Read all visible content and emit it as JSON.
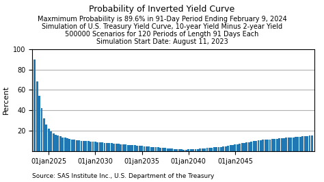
{
  "chart_data": {
    "type": "bar",
    "title": "Probability of Inverted Yield Curve",
    "subtitle": [
      "Maxmimum Probability is 89.6% in 91-Day Period Ending February 9, 2024",
      "Simulation of U.S. Treasury Yield Curve, 10-year Yield Minus 2-year Yield",
      "500000 Scenarios for 120 Periods of Length 91 Days Each",
      "Simulation Start Date: August 11, 2023"
    ],
    "y_label": "Percent",
    "annotations": [
      "Source: SAS Institute Inc., U.S. Department of the Treasury"
    ],
    "categories": [
      null,
      null,
      null,
      null,
      null,
      null,
      "01jan2025",
      null,
      null,
      null,
      null,
      null,
      null,
      null,
      null,
      null,
      null,
      null,
      null,
      null,
      null,
      null,
      null,
      null,
      null,
      null,
      "01jan2030",
      null,
      null,
      null,
      null,
      null,
      null,
      null,
      null,
      null,
      null,
      null,
      null,
      null,
      null,
      null,
      null,
      null,
      null,
      null,
      "01jan2035",
      null,
      null,
      null,
      null,
      null,
      null,
      null,
      null,
      null,
      null,
      null,
      null,
      null,
      null,
      null,
      null,
      null,
      null,
      null,
      "01jan2040",
      null,
      null,
      null,
      null,
      null,
      null,
      null,
      null,
      null,
      null,
      null,
      null,
      null,
      null,
      null,
      null,
      null,
      null,
      null,
      "01jan2045",
      null,
      null,
      null,
      null,
      null,
      null,
      null,
      null,
      null,
      null,
      null,
      null,
      null,
      null,
      null,
      null,
      null,
      null,
      null,
      null,
      null,
      null,
      null,
      null,
      null,
      null,
      null,
      null,
      null,
      null,
      null,
      null,
      null
    ],
    "values": [
      89.6,
      68.0,
      54.0,
      42.0,
      32.0,
      26.0,
      22.0,
      19.0,
      17.0,
      16.0,
      15.0,
      14.5,
      13.5,
      13.0,
      12.5,
      12.0,
      11.5,
      11.0,
      10.8,
      10.5,
      10.2,
      10.0,
      9.8,
      9.6,
      9.4,
      9.2,
      9.0,
      8.8,
      8.6,
      8.4,
      8.2,
      8.0,
      7.8,
      7.6,
      7.4,
      7.2,
      7.0,
      6.8,
      6.6,
      6.4,
      6.2,
      6.0,
      5.8,
      5.6,
      5.4,
      5.2,
      5.0,
      4.8,
      4.6,
      4.4,
      4.2,
      4.0,
      3.8,
      3.6,
      3.4,
      3.2,
      3.0,
      2.8,
      2.6,
      2.4,
      2.2,
      2.0,
      1.8,
      1.6,
      1.5,
      1.5,
      1.6,
      1.7,
      1.8,
      2.0,
      2.2,
      2.4,
      2.6,
      2.8,
      3.0,
      3.2,
      3.4,
      3.6,
      3.8,
      4.0,
      4.2,
      4.5,
      4.8,
      5.2,
      5.6,
      6.0,
      6.4,
      6.8,
      7.2,
      7.6,
      8.0,
      8.4,
      8.8,
      9.2,
      9.6,
      10.0,
      10.4,
      10.8,
      11.0,
      11.2,
      11.4,
      11.6,
      11.8,
      12.0,
      12.2,
      12.4,
      12.6,
      12.8,
      13.0,
      13.2,
      13.4,
      13.6,
      13.8,
      14.0,
      14.2,
      14.4,
      14.6,
      14.8,
      15.0,
      15.0
    ],
    "ylim": [
      0,
      100
    ],
    "yticks": [
      20,
      40,
      60,
      80,
      100
    ],
    "grid": true
  }
}
